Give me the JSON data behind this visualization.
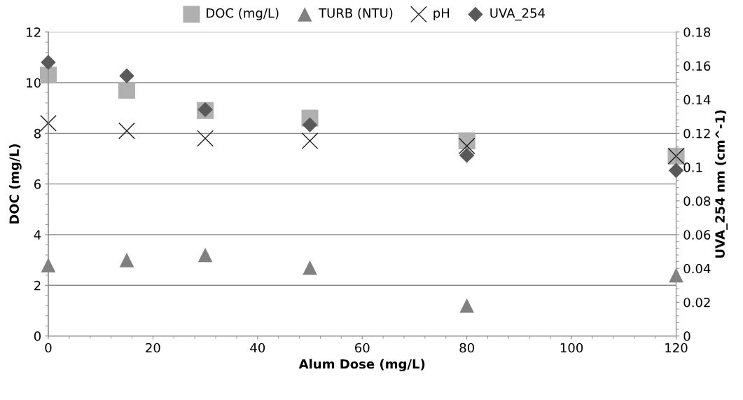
{
  "chart_data": {
    "type": "scatter",
    "xlabel": "Alum Dose (mg/L)",
    "ylabel": "DOC (mg/L)",
    "y2label": "UVA_254 nm (cm^-1)",
    "x": [
      0,
      15,
      30,
      50,
      80,
      120
    ],
    "xlim": [
      0,
      120
    ],
    "xticks": [
      0,
      20,
      40,
      60,
      80,
      100,
      120
    ],
    "ylim": [
      0,
      12
    ],
    "yticks": [
      0,
      2,
      4,
      6,
      8,
      10,
      12
    ],
    "y2lim": [
      0,
      0.18
    ],
    "y2ticks": [
      0,
      0.02,
      0.04,
      0.06,
      0.08,
      0.1,
      0.12,
      0.14,
      0.16,
      0.18
    ],
    "grid": "y",
    "legend": "top",
    "series": [
      {
        "name": "DOC (mg/L)",
        "color": "#b0b0b0",
        "marker": "square",
        "values": [
          10.3,
          9.7,
          8.9,
          8.6,
          7.7,
          7.1
        ]
      },
      {
        "name": "TURB (NTU)",
        "color": "#808080",
        "marker": "triangle",
        "values": [
          2.8,
          3.0,
          3.2,
          2.7,
          1.2,
          2.4
        ]
      },
      {
        "name": "pH",
        "color": "#1a1a1a",
        "marker": "cross",
        "values": [
          8.4,
          8.1,
          7.8,
          7.7,
          7.5,
          7.1
        ]
      },
      {
        "name": "UVA_254",
        "color": "#595959",
        "marker": "diamond",
        "axis": "y2",
        "values": [
          0.162,
          0.154,
          0.134,
          0.125,
          0.107,
          0.098
        ]
      }
    ]
  }
}
